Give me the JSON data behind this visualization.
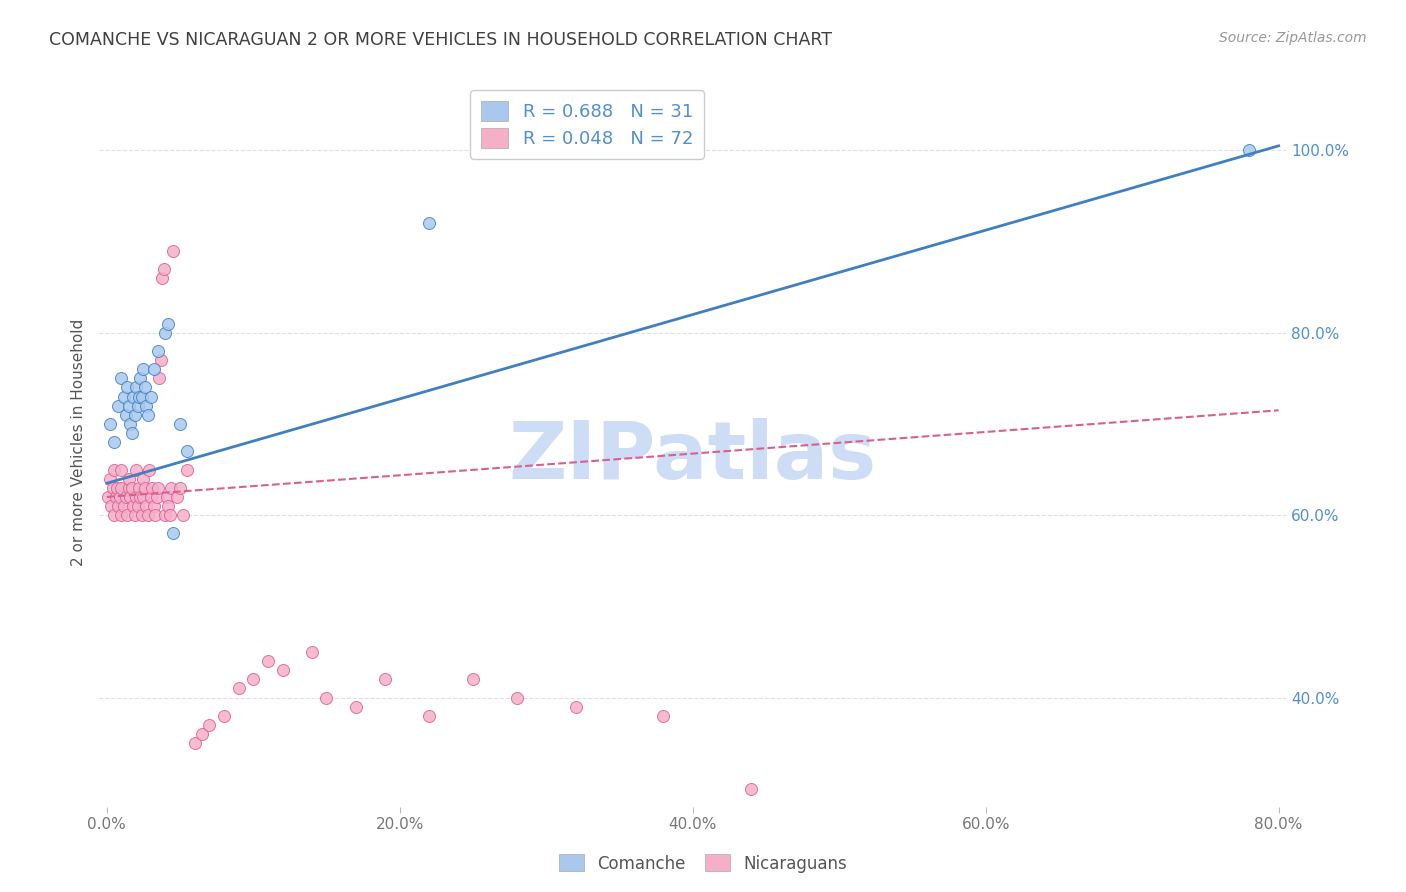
{
  "title": "COMANCHE VS NICARAGUAN 2 OR MORE VEHICLES IN HOUSEHOLD CORRELATION CHART",
  "source": "Source: ZipAtlas.com",
  "xlabel_ticks": [
    "0.0%",
    "20.0%",
    "40.0%",
    "60.0%",
    "80.0%"
  ],
  "ylabel_ticks_right": [
    "40.0%",
    "60.0%",
    "80.0%",
    "100.0%"
  ],
  "ylabel_label": "2 or more Vehicles in Household",
  "legend_entry_blue": "R = 0.688   N = 31",
  "legend_entry_pink": "R = 0.048   N = 72",
  "watermark": "ZIPatlas",
  "comanche_scatter_x": [
    0.002,
    0.005,
    0.008,
    0.01,
    0.012,
    0.013,
    0.014,
    0.015,
    0.016,
    0.017,
    0.018,
    0.019,
    0.02,
    0.021,
    0.022,
    0.023,
    0.024,
    0.025,
    0.026,
    0.027,
    0.028,
    0.03,
    0.032,
    0.035,
    0.04,
    0.042,
    0.045,
    0.05,
    0.055,
    0.22,
    0.78
  ],
  "comanche_scatter_y": [
    0.7,
    0.68,
    0.72,
    0.75,
    0.73,
    0.71,
    0.74,
    0.72,
    0.7,
    0.69,
    0.73,
    0.71,
    0.74,
    0.72,
    0.73,
    0.75,
    0.73,
    0.76,
    0.74,
    0.72,
    0.71,
    0.73,
    0.76,
    0.78,
    0.8,
    0.81,
    0.58,
    0.7,
    0.67,
    0.92,
    1.0
  ],
  "nicaraguan_scatter_x": [
    0.001,
    0.002,
    0.003,
    0.004,
    0.005,
    0.005,
    0.006,
    0.007,
    0.008,
    0.009,
    0.01,
    0.01,
    0.01,
    0.012,
    0.013,
    0.014,
    0.015,
    0.015,
    0.016,
    0.017,
    0.018,
    0.019,
    0.02,
    0.02,
    0.021,
    0.022,
    0.023,
    0.024,
    0.025,
    0.025,
    0.026,
    0.027,
    0.028,
    0.029,
    0.03,
    0.031,
    0.032,
    0.033,
    0.034,
    0.035,
    0.036,
    0.037,
    0.038,
    0.039,
    0.04,
    0.041,
    0.042,
    0.043,
    0.044,
    0.045,
    0.048,
    0.05,
    0.052,
    0.055,
    0.06,
    0.065,
    0.07,
    0.08,
    0.09,
    0.1,
    0.11,
    0.12,
    0.14,
    0.15,
    0.17,
    0.19,
    0.22,
    0.25,
    0.28,
    0.32,
    0.38,
    0.44
  ],
  "nicaraguan_scatter_y": [
    0.62,
    0.64,
    0.61,
    0.63,
    0.6,
    0.65,
    0.62,
    0.63,
    0.61,
    0.62,
    0.6,
    0.63,
    0.65,
    0.61,
    0.62,
    0.6,
    0.63,
    0.64,
    0.62,
    0.63,
    0.61,
    0.6,
    0.62,
    0.65,
    0.61,
    0.63,
    0.62,
    0.6,
    0.64,
    0.62,
    0.63,
    0.61,
    0.6,
    0.65,
    0.62,
    0.63,
    0.61,
    0.6,
    0.62,
    0.63,
    0.75,
    0.77,
    0.86,
    0.87,
    0.6,
    0.62,
    0.61,
    0.6,
    0.63,
    0.89,
    0.62,
    0.63,
    0.6,
    0.65,
    0.35,
    0.36,
    0.37,
    0.38,
    0.41,
    0.42,
    0.44,
    0.43,
    0.45,
    0.4,
    0.39,
    0.42,
    0.38,
    0.42,
    0.4,
    0.39,
    0.38,
    0.3
  ],
  "comanche_line_x": [
    0.0,
    0.8
  ],
  "comanche_line_y": [
    0.635,
    1.005
  ],
  "nicaraguan_line_x": [
    0.0,
    0.8
  ],
  "nicaraguan_line_y": [
    0.62,
    0.715
  ],
  "xlim": [
    -0.005,
    0.805
  ],
  "ylim": [
    0.28,
    1.08
  ],
  "x_tick_vals": [
    0.0,
    0.2,
    0.4,
    0.6,
    0.8
  ],
  "y_tick_vals": [
    0.4,
    0.6,
    0.8,
    1.0
  ],
  "scatter_color_blue": "#a8c8ee",
  "scatter_color_pink": "#f5b0c8",
  "line_color_blue": "#4080c0",
  "line_color_pink": "#d86090",
  "bg_color": "#ffffff",
  "grid_color": "#d8d8d8",
  "title_color": "#404040",
  "source_color": "#999999",
  "watermark_color": "#ccddf5",
  "axis_right_color": "#5090d0",
  "legend_text_color": "#5090d0",
  "bottom_legend_color": "#555555"
}
